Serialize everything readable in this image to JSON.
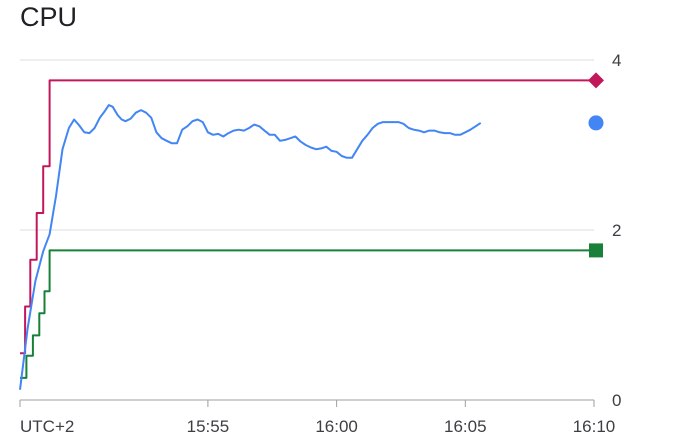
{
  "chart_data": {
    "type": "line",
    "title": "CPU",
    "xlabel": "",
    "ylabel": "",
    "timezone_label": "UTC+2",
    "y_ticks": [
      0,
      2,
      4
    ],
    "x_ticks": [
      {
        "label": "UTC+2",
        "t": 47.7
      },
      {
        "label": "15:55",
        "t": 55
      },
      {
        "label": "16:00",
        "t": 60
      },
      {
        "label": "16:05",
        "t": 65
      },
      {
        "label": "16:10",
        "t": 70
      }
    ],
    "xlim": [
      47.7,
      70
    ],
    "ylim": [
      0,
      4.0
    ],
    "grid": true,
    "series": [
      {
        "name": "",
        "color": "#c2185b",
        "marker": "diamond",
        "style": "step",
        "points": [
          [
            47.7,
            0.55
          ],
          [
            47.9,
            0.55
          ],
          [
            47.9,
            1.1
          ],
          [
            48.1,
            1.1
          ],
          [
            48.1,
            1.65
          ],
          [
            48.35,
            1.65
          ],
          [
            48.35,
            2.2
          ],
          [
            48.6,
            2.2
          ],
          [
            48.6,
            2.75
          ],
          [
            48.85,
            2.75
          ],
          [
            48.85,
            3.76
          ],
          [
            70,
            3.76
          ]
        ]
      },
      {
        "name": "",
        "color": "#188038",
        "marker": "square",
        "style": "step",
        "points": [
          [
            47.7,
            0.26
          ],
          [
            47.95,
            0.26
          ],
          [
            47.95,
            0.52
          ],
          [
            48.2,
            0.52
          ],
          [
            48.2,
            0.76
          ],
          [
            48.45,
            0.76
          ],
          [
            48.45,
            1.02
          ],
          [
            48.65,
            1.02
          ],
          [
            48.65,
            1.28
          ],
          [
            48.85,
            1.28
          ],
          [
            48.85,
            1.76
          ],
          [
            70,
            1.76
          ]
        ]
      },
      {
        "name": "",
        "color": "#4285f4",
        "marker": "circle",
        "style": "line",
        "points": [
          [
            47.7,
            0.12
          ],
          [
            48.0,
            0.85
          ],
          [
            48.3,
            1.4
          ],
          [
            48.6,
            1.75
          ],
          [
            48.85,
            1.95
          ],
          [
            49.1,
            2.4
          ],
          [
            49.35,
            2.95
          ],
          [
            49.6,
            3.2
          ],
          [
            49.8,
            3.3
          ],
          [
            50.0,
            3.23
          ],
          [
            50.2,
            3.15
          ],
          [
            50.4,
            3.14
          ],
          [
            50.6,
            3.2
          ],
          [
            50.8,
            3.32
          ],
          [
            51.0,
            3.4
          ],
          [
            51.15,
            3.47
          ],
          [
            51.3,
            3.45
          ],
          [
            51.5,
            3.35
          ],
          [
            51.65,
            3.3
          ],
          [
            51.8,
            3.28
          ],
          [
            52.0,
            3.31
          ],
          [
            52.2,
            3.38
          ],
          [
            52.4,
            3.41
          ],
          [
            52.6,
            3.38
          ],
          [
            52.8,
            3.32
          ],
          [
            53.0,
            3.15
          ],
          [
            53.2,
            3.08
          ],
          [
            53.4,
            3.05
          ],
          [
            53.6,
            3.02
          ],
          [
            53.8,
            3.02
          ],
          [
            54.0,
            3.18
          ],
          [
            54.2,
            3.22
          ],
          [
            54.4,
            3.28
          ],
          [
            54.6,
            3.3
          ],
          [
            54.8,
            3.27
          ],
          [
            55.0,
            3.15
          ],
          [
            55.2,
            3.12
          ],
          [
            55.4,
            3.13
          ],
          [
            55.6,
            3.1
          ],
          [
            55.8,
            3.14
          ],
          [
            56.0,
            3.17
          ],
          [
            56.2,
            3.18
          ],
          [
            56.4,
            3.17
          ],
          [
            56.6,
            3.2
          ],
          [
            56.8,
            3.24
          ],
          [
            57.0,
            3.22
          ],
          [
            57.2,
            3.17
          ],
          [
            57.4,
            3.12
          ],
          [
            57.6,
            3.12
          ],
          [
            57.8,
            3.05
          ],
          [
            58.0,
            3.06
          ],
          [
            58.2,
            3.08
          ],
          [
            58.4,
            3.1
          ],
          [
            58.6,
            3.04
          ],
          [
            58.8,
            3.0
          ],
          [
            59.0,
            2.97
          ],
          [
            59.2,
            2.95
          ],
          [
            59.4,
            2.96
          ],
          [
            59.6,
            2.98
          ],
          [
            59.8,
            2.93
          ],
          [
            60.0,
            2.92
          ],
          [
            60.2,
            2.87
          ],
          [
            60.4,
            2.85
          ],
          [
            60.6,
            2.85
          ],
          [
            60.8,
            2.95
          ],
          [
            61.0,
            3.05
          ],
          [
            61.2,
            3.12
          ],
          [
            61.4,
            3.2
          ],
          [
            61.6,
            3.25
          ],
          [
            61.8,
            3.27
          ],
          [
            62.0,
            3.27
          ],
          [
            62.2,
            3.27
          ],
          [
            62.4,
            3.27
          ],
          [
            62.6,
            3.25
          ],
          [
            62.8,
            3.2
          ],
          [
            63.0,
            3.18
          ],
          [
            63.2,
            3.17
          ],
          [
            63.4,
            3.15
          ],
          [
            63.6,
            3.17
          ],
          [
            63.8,
            3.17
          ],
          [
            64.0,
            3.15
          ],
          [
            64.2,
            3.14
          ],
          [
            64.4,
            3.14
          ],
          [
            64.6,
            3.12
          ],
          [
            64.8,
            3.12
          ],
          [
            65.0,
            3.15
          ],
          [
            65.2,
            3.18
          ],
          [
            65.4,
            3.22
          ],
          [
            65.6,
            3.26
          ]
        ]
      }
    ]
  }
}
